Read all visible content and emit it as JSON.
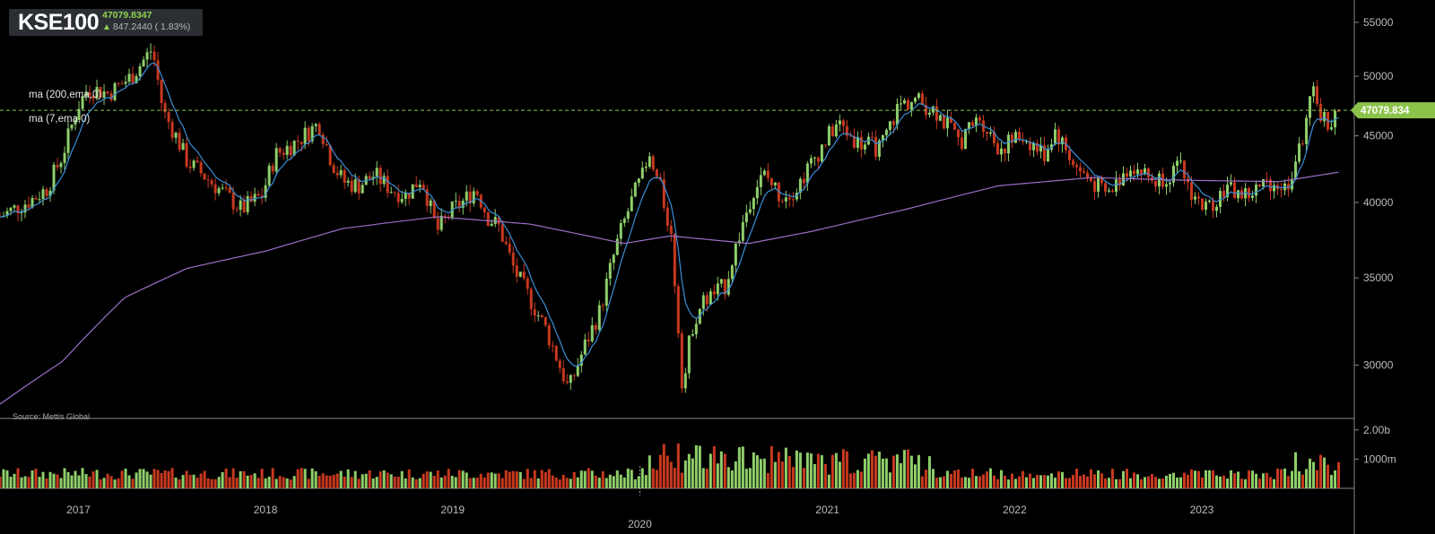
{
  "header": {
    "symbol": "KSE100",
    "last_price": "47079.8347",
    "change": "847.2440 ( 1.83%)",
    "direction_icon": "arrow-up-icon"
  },
  "indicators": [
    {
      "label": "ma (200,ema,0)",
      "color": "#9b6fc9"
    },
    {
      "label": "ma (7,ema,0)",
      "color": "#3a8fd8"
    }
  ],
  "source": "Source: Mettis Global",
  "price_tag": "47079.834",
  "colors": {
    "background": "#000000",
    "up": "#8fcf6b",
    "down": "#c8391f",
    "ma200": "#9b6fc9",
    "ma7": "#3a8fd8",
    "grid_line": "#888888",
    "price_line": "#8bc34a"
  },
  "chart_data": {
    "type": "candlestick",
    "scale": "log",
    "price_axis": {
      "ticks": [
        30000,
        35000,
        40000,
        45000,
        50000,
        55000
      ],
      "tick_labels": [
        "30000",
        "35000",
        "40000",
        "45000",
        "50000",
        "55000"
      ],
      "range": [
        27300,
        56500
      ]
    },
    "volume_axis": {
      "tick_labels": [
        "1000m",
        "2.00b"
      ],
      "ticks": [
        1000000000,
        2000000000
      ]
    },
    "x_axis": {
      "tick_labels": [
        "2017",
        "2018",
        "2019",
        "2020",
        "2021",
        "2022",
        "2023"
      ],
      "ticks": [
        "2017-01-01",
        "2018-01-01",
        "2019-01-01",
        "2020-01-01",
        "2021-01-01",
        "2022-01-01",
        "2023-01-01"
      ],
      "range": [
        "2016-08-01",
        "2023-07-30"
      ]
    },
    "close_series": [
      [
        "2016-08-01",
        39000
      ],
      [
        "2016-10-01",
        40200
      ],
      [
        "2016-11-01",
        41000
      ],
      [
        "2016-12-01",
        43500
      ],
      [
        "2017-01-01",
        47500
      ],
      [
        "2017-01-20",
        49000
      ],
      [
        "2017-03-01",
        48500
      ],
      [
        "2017-04-15",
        50000
      ],
      [
        "2017-05-25",
        52500
      ],
      [
        "2017-06-15",
        47000
      ],
      [
        "2017-07-10",
        45000
      ],
      [
        "2017-08-01",
        43000
      ],
      [
        "2017-09-01",
        42000
      ],
      [
        "2017-10-01",
        41000
      ],
      [
        "2017-11-15",
        39500
      ],
      [
        "2017-12-25",
        40500
      ],
      [
        "2018-01-20",
        43500
      ],
      [
        "2018-03-01",
        44500
      ],
      [
        "2018-04-15",
        46000
      ],
      [
        "2018-05-10",
        43000
      ],
      [
        "2018-06-01",
        41500
      ],
      [
        "2018-07-01",
        41200
      ],
      [
        "2018-08-01",
        42000
      ],
      [
        "2018-09-01",
        41000
      ],
      [
        "2018-10-01",
        40500
      ],
      [
        "2018-11-01",
        41800
      ],
      [
        "2018-12-01",
        38000
      ],
      [
        "2019-01-01",
        39500
      ],
      [
        "2019-01-20",
        40000
      ],
      [
        "2019-02-15",
        41000
      ],
      [
        "2019-03-10",
        39000
      ],
      [
        "2019-04-01",
        38300
      ],
      [
        "2019-05-01",
        35500
      ],
      [
        "2019-06-01",
        33700
      ],
      [
        "2019-07-01",
        32000
      ],
      [
        "2019-08-15",
        28700
      ],
      [
        "2019-09-15",
        31000
      ],
      [
        "2019-10-15",
        33000
      ],
      [
        "2019-11-20",
        37500
      ],
      [
        "2019-12-20",
        40500
      ],
      [
        "2020-01-20",
        43000
      ],
      [
        "2020-02-10",
        41000
      ],
      [
        "2020-03-01",
        38000
      ],
      [
        "2020-03-25",
        28500
      ],
      [
        "2020-04-10",
        32000
      ],
      [
        "2020-05-01",
        33500
      ],
      [
        "2020-06-15",
        34500
      ],
      [
        "2020-07-15",
        38000
      ],
      [
        "2020-08-10",
        41000
      ],
      [
        "2020-09-01",
        42000
      ],
      [
        "2020-10-01",
        40500
      ],
      [
        "2020-11-01",
        41000
      ],
      [
        "2020-12-10",
        43500
      ],
      [
        "2021-01-20",
        46000
      ],
      [
        "2021-03-01",
        44500
      ],
      [
        "2021-04-15",
        44000
      ],
      [
        "2021-05-20",
        47500
      ],
      [
        "2021-06-20",
        48000
      ],
      [
        "2021-08-01",
        47000
      ],
      [
        "2021-09-15",
        44500
      ],
      [
        "2021-10-25",
        46500
      ],
      [
        "2021-12-01",
        44000
      ],
      [
        "2022-01-15",
        45000
      ],
      [
        "2022-03-01",
        43500
      ],
      [
        "2022-03-20",
        45500
      ],
      [
        "2022-05-01",
        42500
      ],
      [
        "2022-07-01",
        40500
      ],
      [
        "2022-08-15",
        42800
      ],
      [
        "2022-10-01",
        41500
      ],
      [
        "2022-11-20",
        42500
      ],
      [
        "2022-12-15",
        40500
      ],
      [
        "2023-01-10",
        39500
      ],
      [
        "2023-02-15",
        41000
      ],
      [
        "2023-04-01",
        40500
      ],
      [
        "2023-05-15",
        41500
      ],
      [
        "2023-06-15",
        41000
      ],
      [
        "2023-07-15",
        44500
      ],
      [
        "2023-08-05",
        48500
      ],
      [
        "2023-08-25",
        46500
      ],
      [
        "2023-09-10",
        46000
      ],
      [
        "2023-09-25",
        47079.8347
      ]
    ],
    "ma200_series": [
      [
        "2016-08-01",
        28000
      ],
      [
        "2016-12-01",
        30200
      ],
      [
        "2017-04-01",
        33800
      ],
      [
        "2017-08-01",
        35600
      ],
      [
        "2018-01-01",
        36700
      ],
      [
        "2018-06-01",
        38200
      ],
      [
        "2018-12-01",
        39000
      ],
      [
        "2019-06-01",
        38500
      ],
      [
        "2019-12-01",
        37200
      ],
      [
        "2020-03-01",
        37700
      ],
      [
        "2020-08-01",
        37200
      ],
      [
        "2020-12-01",
        38000
      ],
      [
        "2021-06-01",
        39500
      ],
      [
        "2021-12-01",
        41200
      ],
      [
        "2022-06-01",
        41800
      ],
      [
        "2022-12-01",
        41600
      ],
      [
        "2023-06-01",
        41500
      ],
      [
        "2023-09-25",
        42200
      ]
    ],
    "last_close": 47079.8347
  }
}
